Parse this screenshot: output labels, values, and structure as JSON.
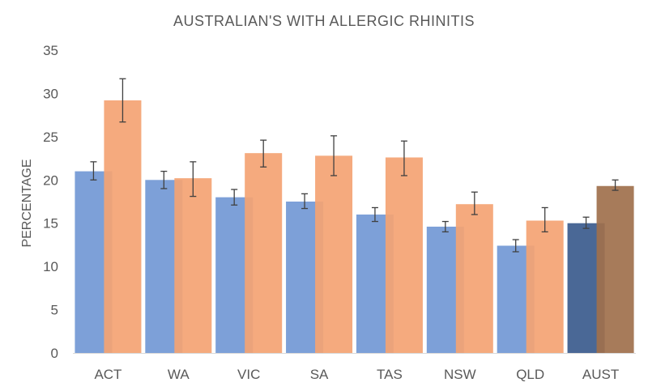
{
  "chart_data": {
    "type": "bar",
    "title": "AUSTRALIAN'S WITH ALLERGIC RHINITIS",
    "ylabel": "PERCENTAGE",
    "xlabel": "",
    "ylim": [
      0,
      35
    ],
    "yticks": [
      0,
      5,
      10,
      15,
      20,
      25,
      30,
      35
    ],
    "grid": false,
    "legend": "none",
    "categories": [
      "ACT",
      "WA",
      "VIC",
      "SA",
      "TAS",
      "NSW",
      "QLD",
      "AUST"
    ],
    "series": [
      {
        "values": [
          21.0,
          20.0,
          18.0,
          17.5,
          16.0,
          14.6,
          12.4,
          15.0
        ],
        "error_low": [
          1.0,
          1.0,
          0.9,
          0.8,
          0.8,
          0.6,
          0.7,
          0.6
        ],
        "error_high": [
          1.1,
          1.0,
          0.9,
          0.9,
          0.8,
          0.6,
          0.7,
          0.7
        ],
        "color": "#7da0d8",
        "highlight_color": "#4a6896"
      },
      {
        "values": [
          29.2,
          20.2,
          23.1,
          22.8,
          22.6,
          17.2,
          15.3,
          19.3
        ],
        "error_low": [
          2.5,
          2.1,
          1.6,
          2.3,
          2.1,
          1.2,
          1.3,
          0.5
        ],
        "error_high": [
          2.5,
          1.9,
          1.5,
          2.3,
          1.9,
          1.4,
          1.5,
          0.7
        ],
        "color": "#f4a373",
        "highlight_color": "#a0704c"
      }
    ],
    "highlight_category": "AUST"
  }
}
